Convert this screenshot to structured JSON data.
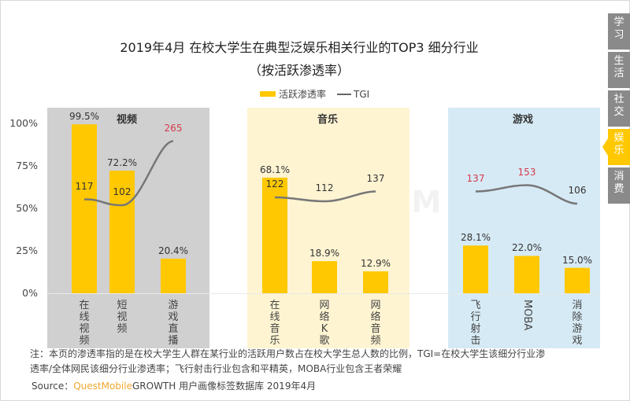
{
  "chart_data": {
    "type": "bar",
    "title": "2019年4月 在校大学生在典型泛娱乐相关行业的TOP3 细分行业",
    "subtitle": "（按活跃渗透率）",
    "legend": [
      {
        "name": "活跃渗透率",
        "kind": "bar",
        "color": "#ffc800"
      },
      {
        "name": "TGI",
        "kind": "line",
        "color": "#777777"
      }
    ],
    "legend_position": "top-center",
    "yaxis": {
      "ticks": [
        "100%",
        "75%",
        "50%",
        "25%",
        "0%"
      ],
      "ylim": [
        0,
        100
      ],
      "unit": "%"
    },
    "groups": [
      {
        "name": "视频",
        "background": "#d0d0d0",
        "categories": [
          "在线视频",
          "短视频",
          "游戏直播"
        ]
      },
      {
        "name": "音乐",
        "background": "#fef4d2",
        "categories": [
          "在线音乐",
          "网络K歌",
          "网络音频"
        ]
      },
      {
        "name": "游戏",
        "background": "#d6eaf5",
        "categories": [
          "飞行射击",
          "MOBA",
          "消除游戏"
        ]
      }
    ],
    "categories": [
      "在线视频",
      "短视频",
      "游戏直播",
      "在线音乐",
      "网络K歌",
      "网络音频",
      "飞行射击",
      "MOBA",
      "消除游戏"
    ],
    "series": [
      {
        "name": "活跃渗透率",
        "type": "bar",
        "values": [
          99.5,
          72.2,
          20.4,
          68.1,
          18.9,
          12.9,
          28.1,
          22.0,
          15.0
        ],
        "labels": [
          "99.5%",
          "72.2%",
          "20.4%",
          "68.1%",
          "18.9%",
          "12.9%",
          "28.1%",
          "22.0%",
          "15.0%"
        ]
      },
      {
        "name": "TGI",
        "type": "line",
        "values": [
          117,
          102,
          265,
          122,
          112,
          137,
          137,
          153,
          106
        ],
        "highlight": [
          false,
          false,
          true,
          false,
          false,
          false,
          true,
          true,
          false
        ]
      }
    ],
    "highlight_color": "#d63a4a"
  },
  "note_line1": "注：本页的渗透率指的是在校大学生人群在某行业的活跃用户数占在校大学生总人数的比例，TGI=在校大学生该细分行业渗",
  "note_line2": "透率/全体网民该细分行业渗透率；飞行射击行业包含和平精英，MOBA行业包含王者荣耀",
  "source": {
    "prefix": "Source：",
    "brand": "QuestMobile",
    "rest": "GROWTH 用户画像标签数据库  2019年4月"
  },
  "watermark": "QUESTMOBILE",
  "side_tabs": [
    {
      "label": "学习",
      "active": false
    },
    {
      "label": "生活",
      "active": false
    },
    {
      "label": "社交",
      "active": false
    },
    {
      "label": "娱乐",
      "active": true
    },
    {
      "label": "消费",
      "active": false
    }
  ]
}
